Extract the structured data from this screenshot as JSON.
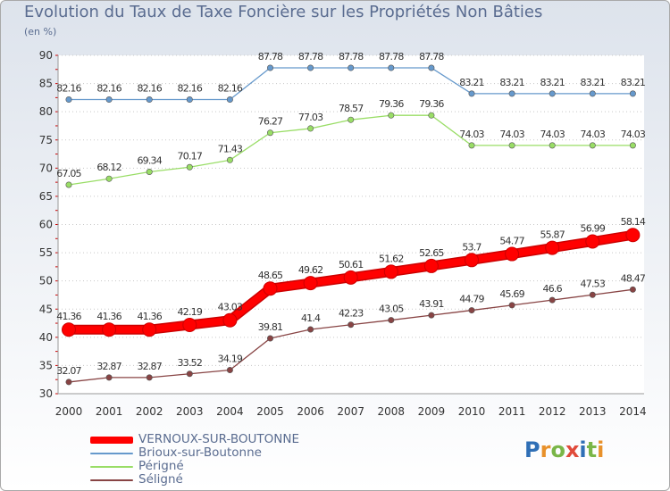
{
  "title": "Evolution du Taux de Taxe Foncière sur les Propriétés Non Bâties",
  "unit_label": "(en %)",
  "logo_text": "Proxiti",
  "chart_data": {
    "type": "line",
    "title": "Evolution du Taux de Taxe Foncière sur les Propriétés Non Bâties",
    "ylabel": "(en %)",
    "xlabel": "",
    "x": [
      "2000",
      "2001",
      "2002",
      "2003",
      "2004",
      "2005",
      "2006",
      "2007",
      "2008",
      "2009",
      "2010",
      "2011",
      "2012",
      "2013",
      "2014"
    ],
    "ylim": [
      30,
      90
    ],
    "yticks": [
      30,
      35,
      40,
      45,
      50,
      55,
      60,
      65,
      70,
      75,
      80,
      85,
      90
    ],
    "grid": "horizontal dotted",
    "legend_position": "bottom-left",
    "series": [
      {
        "name": "VERNOUX-SUR-BOUTONNE",
        "color": "#ff0000",
        "emphasis": true,
        "values": [
          41.36,
          41.36,
          41.36,
          42.19,
          43.03,
          48.65,
          49.62,
          50.61,
          51.62,
          52.65,
          53.7,
          54.77,
          55.87,
          56.99,
          58.14
        ],
        "labels": [
          "41.36",
          "41.36",
          "41.36",
          "42.19",
          "43.03",
          "48.65",
          "49.62",
          "50.61",
          "51.62",
          "52.65",
          "53.7",
          "54.77",
          "55.87",
          "56.99",
          "58.14"
        ]
      },
      {
        "name": "Brioux-sur-Boutonne",
        "color": "#6699cc",
        "values": [
          82.16,
          82.16,
          82.16,
          82.16,
          82.16,
          87.78,
          87.78,
          87.78,
          87.78,
          87.78,
          83.21,
          83.21,
          83.21,
          83.21,
          83.21
        ],
        "labels": [
          "82.16",
          "82.16",
          "82.16",
          "82.16",
          "82.16",
          "87.78",
          "87.78",
          "87.78",
          "87.78",
          "87.78",
          "83.21",
          "83.21",
          "83.21",
          "83.21",
          "83.21"
        ]
      },
      {
        "name": "Périgné",
        "color": "#99dd66",
        "values": [
          67.05,
          68.12,
          69.34,
          70.17,
          71.43,
          76.27,
          77.03,
          78.57,
          79.36,
          79.36,
          74.03,
          74.03,
          74.03,
          74.03,
          74.03
        ],
        "labels": [
          "67.05",
          "68.12",
          "69.34",
          "70.17",
          "71.43",
          "76.27",
          "77.03",
          "78.57",
          "79.36",
          "79.36",
          "74.03",
          "74.03",
          "74.03",
          "74.03",
          "74.03"
        ]
      },
      {
        "name": "Séligné",
        "color": "#884444",
        "values": [
          32.07,
          32.87,
          32.87,
          33.52,
          34.19,
          39.81,
          41.4,
          42.23,
          43.05,
          43.91,
          44.79,
          45.69,
          46.6,
          47.53,
          48.47
        ],
        "labels": [
          "32.07",
          "32.87",
          "32.87",
          "33.52",
          "34.19",
          "39.81",
          "41.4",
          "42.23",
          "43.05",
          "43.91",
          "44.79",
          "45.69",
          "46.6",
          "47.53",
          "48.47"
        ]
      }
    ]
  }
}
